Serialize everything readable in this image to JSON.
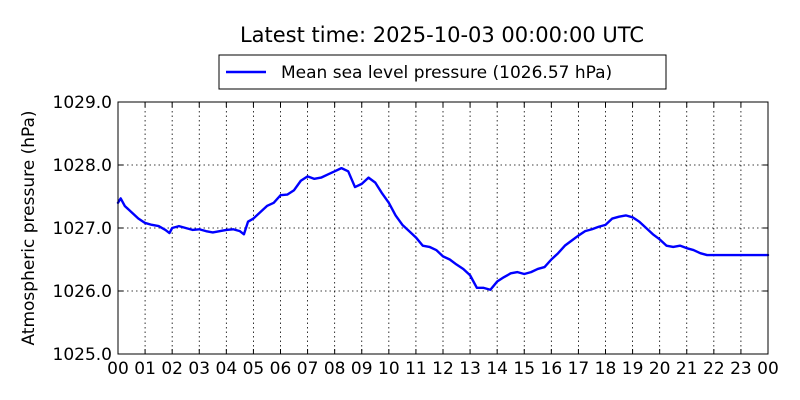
{
  "chart_data": {
    "type": "line",
    "title": "Latest time: 2025-10-03 00:00:00 UTC",
    "ylabel": "Atmospheric pressure (hPa)",
    "xlabel": "",
    "xlim": [
      0,
      24
    ],
    "ylim": [
      1025.0,
      1029.0
    ],
    "grid": true,
    "legend_position": "top-center",
    "x_ticks": [
      0,
      1,
      2,
      3,
      4,
      5,
      6,
      7,
      8,
      9,
      10,
      11,
      12,
      13,
      14,
      15,
      16,
      17,
      18,
      19,
      20,
      21,
      22,
      23,
      24
    ],
    "x_tick_labels": [
      "00",
      "01",
      "02",
      "03",
      "04",
      "05",
      "06",
      "07",
      "08",
      "09",
      "10",
      "11",
      "12",
      "13",
      "14",
      "15",
      "16",
      "17",
      "18",
      "19",
      "20",
      "21",
      "22",
      "23",
      "00"
    ],
    "y_ticks": [
      1025.0,
      1026.0,
      1027.0,
      1028.0,
      1029.0
    ],
    "y_tick_labels": [
      "1025.0",
      "1026.0",
      "1027.0",
      "1028.0",
      "1029.0"
    ],
    "series": [
      {
        "name": "Mean sea level pressure (1026.57 hPa)",
        "color": "#0000ff",
        "x": [
          0.0,
          0.1,
          0.25,
          0.5,
          0.75,
          1.0,
          1.25,
          1.5,
          1.75,
          1.9,
          2.0,
          2.25,
          2.5,
          2.75,
          3.0,
          3.25,
          3.5,
          3.75,
          4.0,
          4.25,
          4.5,
          4.65,
          4.8,
          5.0,
          5.25,
          5.5,
          5.75,
          6.0,
          6.25,
          6.5,
          6.75,
          7.0,
          7.25,
          7.5,
          7.75,
          8.0,
          8.25,
          8.5,
          8.75,
          9.0,
          9.25,
          9.5,
          9.75,
          10.0,
          10.25,
          10.5,
          10.75,
          11.0,
          11.25,
          11.5,
          11.75,
          12.0,
          12.25,
          12.5,
          12.75,
          13.0,
          13.25,
          13.5,
          13.75,
          14.0,
          14.25,
          14.5,
          14.75,
          15.0,
          15.25,
          15.5,
          15.75,
          16.0,
          16.25,
          16.5,
          16.75,
          17.0,
          17.25,
          17.5,
          17.75,
          18.0,
          18.25,
          18.5,
          18.75,
          19.0,
          19.25,
          19.5,
          19.75,
          20.0,
          20.25,
          20.5,
          20.75,
          21.0,
          21.25,
          21.5,
          21.75,
          22.0,
          22.25,
          22.5,
          22.75,
          23.0,
          23.25,
          23.5,
          23.75,
          24.0
        ],
        "y": [
          1027.4,
          1027.47,
          1027.35,
          1027.25,
          1027.15,
          1027.08,
          1027.05,
          1027.03,
          1026.97,
          1026.92,
          1027.0,
          1027.03,
          1027.0,
          1026.97,
          1026.98,
          1026.95,
          1026.93,
          1026.95,
          1026.97,
          1026.98,
          1026.95,
          1026.9,
          1027.1,
          1027.15,
          1027.25,
          1027.35,
          1027.4,
          1027.52,
          1027.53,
          1027.6,
          1027.75,
          1027.82,
          1027.78,
          1027.8,
          1027.85,
          1027.9,
          1027.95,
          1027.9,
          1027.65,
          1027.7,
          1027.8,
          1027.72,
          1027.55,
          1027.4,
          1027.2,
          1027.05,
          1026.95,
          1026.85,
          1026.72,
          1026.7,
          1026.65,
          1026.55,
          1026.5,
          1026.42,
          1026.35,
          1026.25,
          1026.05,
          1026.05,
          1026.02,
          1026.15,
          1026.22,
          1026.28,
          1026.3,
          1026.27,
          1026.3,
          1026.35,
          1026.38,
          1026.5,
          1026.6,
          1026.72,
          1026.8,
          1026.88,
          1026.95,
          1026.98,
          1027.02,
          1027.05,
          1027.15,
          1027.18,
          1027.2,
          1027.17,
          1027.1,
          1027.0,
          1026.9,
          1026.82,
          1026.72,
          1026.7,
          1026.72,
          1026.68,
          1026.65,
          1026.6,
          1026.57,
          1026.57,
          1026.57,
          1026.57,
          1026.57,
          1026.57,
          1026.57,
          1026.57,
          1026.57,
          1026.57
        ]
      }
    ]
  }
}
